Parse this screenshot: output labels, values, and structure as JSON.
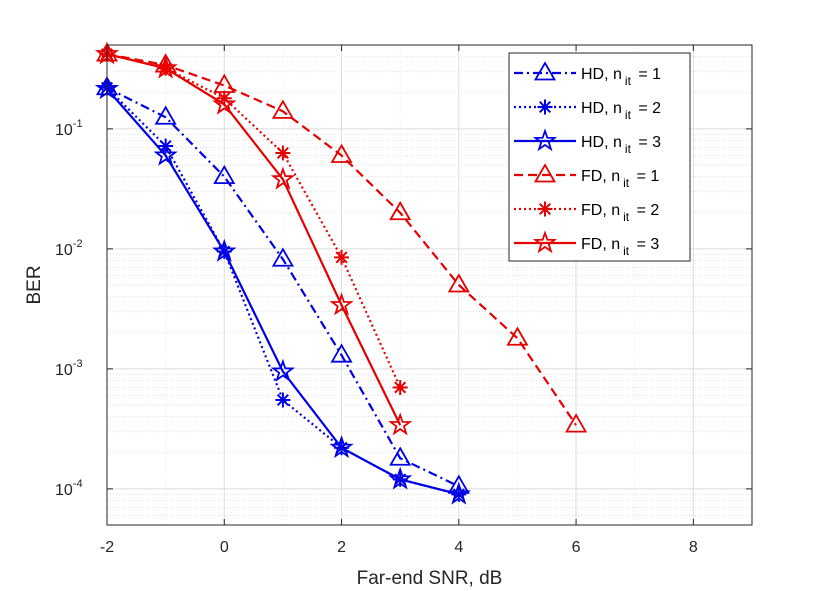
{
  "chart_data": {
    "type": "line",
    "title": "",
    "xlabel": "Far-end SNR, dB",
    "ylabel": "BER",
    "x_scale": "linear",
    "y_scale": "log",
    "xlim": [
      -2,
      9
    ],
    "ylim": [
      5e-05,
      0.5
    ],
    "x_ticks": [
      -2,
      0,
      2,
      4,
      6,
      8
    ],
    "x_tick_labels": [
      "-2",
      "0",
      "2",
      "4",
      "6",
      "8"
    ],
    "y_ticks": [
      0.0001,
      0.001,
      0.01,
      0.1
    ],
    "y_tick_labels": [
      {
        "base": "10",
        "exp": "-4"
      },
      {
        "base": "10",
        "exp": "-3"
      },
      {
        "base": "10",
        "exp": "-2"
      },
      {
        "base": "10",
        "exp": "-1"
      }
    ],
    "grid": true,
    "legend_position": "top-right",
    "series": [
      {
        "name": "HD, n it = 1",
        "label_main": "HD, n",
        "label_sub": "it",
        "label_tail": " = 1",
        "color": "#0000e6",
        "dash": "dashdot",
        "marker": "triangle",
        "x": [
          -2,
          -1,
          0,
          1,
          2,
          3,
          4
        ],
        "y": [
          0.22,
          0.125,
          0.04,
          0.0082,
          0.0013,
          0.00018,
          0.000105
        ]
      },
      {
        "name": "HD, n it = 2",
        "label_main": "HD, n",
        "label_sub": "it",
        "label_tail": " = 2",
        "color": "#0000e6",
        "dash": "dotted",
        "marker": "asterisk",
        "x": [
          -2,
          -1,
          0,
          1,
          2,
          3,
          4
        ],
        "y": [
          0.22,
          0.072,
          0.0095,
          0.00055,
          0.00022,
          0.00012,
          9e-05
        ]
      },
      {
        "name": "HD, n it = 3",
        "label_main": "HD, n",
        "label_sub": "it",
        "label_tail": " = 3",
        "color": "#0000e6",
        "dash": "solid",
        "marker": "star",
        "x": [
          -2,
          -1,
          0,
          1,
          2,
          3,
          4
        ],
        "y": [
          0.215,
          0.06,
          0.0095,
          0.00095,
          0.00022,
          0.00012,
          9e-05
        ]
      },
      {
        "name": "FD, n it = 1",
        "label_main": "FD, n",
        "label_sub": "it",
        "label_tail": " = 1",
        "color": "#e60000",
        "dash": "dashed",
        "marker": "triangle",
        "x": [
          -2,
          -1,
          0,
          1,
          2,
          3,
          4,
          5,
          6
        ],
        "y": [
          0.42,
          0.34,
          0.23,
          0.14,
          0.06,
          0.02,
          0.005,
          0.0018,
          0.00034
        ]
      },
      {
        "name": "FD, n it = 2",
        "label_main": "FD, n",
        "label_sub": "it",
        "label_tail": " = 2",
        "color": "#e60000",
        "dash": "dotted",
        "marker": "asterisk",
        "x": [
          -2,
          -1,
          0,
          1,
          2,
          3
        ],
        "y": [
          0.42,
          0.32,
          0.18,
          0.063,
          0.0085,
          0.0007
        ]
      },
      {
        "name": "FD, n it = 3",
        "label_main": "FD, n",
        "label_sub": "it",
        "label_tail": " = 3",
        "color": "#e60000",
        "dash": "solid",
        "marker": "star",
        "x": [
          -2,
          -1,
          0,
          1,
          2,
          3
        ],
        "y": [
          0.42,
          0.32,
          0.16,
          0.038,
          0.0034,
          0.00034
        ]
      }
    ]
  }
}
